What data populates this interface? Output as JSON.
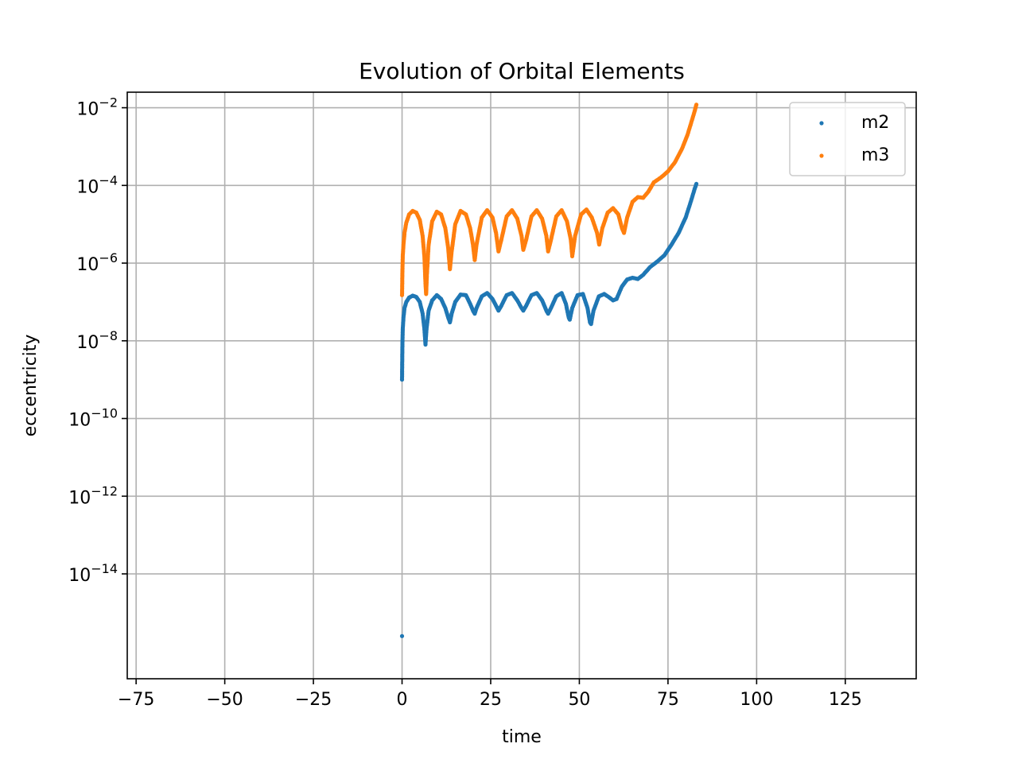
{
  "chart_data": {
    "type": "scatter",
    "title": "Evolution of Orbital Elements",
    "xlabel": "time",
    "ylabel": "eccentricity",
    "xlim": [
      -77.5,
      145
    ],
    "ylim_log10": [
      -16.7,
      -1.6
    ],
    "yscale": "log",
    "grid": true,
    "legend_position": "top-right",
    "x_ticks": [
      -75,
      -50,
      -25,
      0,
      25,
      50,
      75,
      100,
      125
    ],
    "x_tick_labels": [
      "−75",
      "−50",
      "−25",
      "0",
      "25",
      "50",
      "75",
      "100",
      "125"
    ],
    "y_ticks": [
      {
        "exp": -2,
        "base": "10",
        "sup": "−2"
      },
      {
        "exp": -4,
        "base": "10",
        "sup": "−4"
      },
      {
        "exp": -6,
        "base": "10",
        "sup": "−6"
      },
      {
        "exp": -8,
        "base": "10",
        "sup": "−8"
      },
      {
        "exp": -10,
        "base": "10",
        "sup": "−10"
      },
      {
        "exp": -12,
        "base": "10",
        "sup": "−12"
      },
      {
        "exp": -14,
        "base": "10",
        "sup": "−14"
      }
    ],
    "series": [
      {
        "name": "m2",
        "color": "#1f77b4",
        "low_outlier": {
          "x": 0.0,
          "y": 2.5e-16
        },
        "curve": [
          [
            0.0,
            1e-09
          ],
          [
            0.05,
            3e-09
          ],
          [
            0.1,
            8e-09
          ],
          [
            0.2,
            2e-08
          ],
          [
            0.4,
            4e-08
          ],
          [
            0.7,
            7e-08
          ],
          [
            1.2,
            1e-07
          ],
          [
            2.0,
            1.3e-07
          ],
          [
            3.0,
            1.45e-07
          ],
          [
            4.0,
            1.35e-07
          ],
          [
            5.0,
            1e-07
          ],
          [
            5.8,
            5e-08
          ],
          [
            6.3,
            2e-08
          ],
          [
            6.6,
            8e-09
          ],
          [
            6.9,
            2e-08
          ],
          [
            7.5,
            6e-08
          ],
          [
            8.5,
            1.1e-07
          ],
          [
            9.8,
            1.5e-07
          ],
          [
            11.0,
            1.2e-07
          ],
          [
            12.2,
            7e-08
          ],
          [
            13.0,
            4e-08
          ],
          [
            13.5,
            3e-08
          ],
          [
            14.0,
            5e-08
          ],
          [
            15.0,
            1e-07
          ],
          [
            16.5,
            1.55e-07
          ],
          [
            18.0,
            1.5e-07
          ],
          [
            19.2,
            9e-08
          ],
          [
            20.0,
            6e-08
          ],
          [
            20.5,
            5e-08
          ],
          [
            21.0,
            7e-08
          ],
          [
            22.5,
            1.4e-07
          ],
          [
            24.0,
            1.7e-07
          ],
          [
            25.5,
            1.2e-07
          ],
          [
            26.5,
            8e-08
          ],
          [
            27.2,
            6e-08
          ],
          [
            28.0,
            8e-08
          ],
          [
            29.5,
            1.5e-07
          ],
          [
            31.0,
            1.7e-07
          ],
          [
            32.5,
            1.1e-07
          ],
          [
            33.7,
            7e-08
          ],
          [
            34.2,
            6e-08
          ],
          [
            35.0,
            8e-08
          ],
          [
            36.5,
            1.5e-07
          ],
          [
            38.0,
            1.7e-07
          ],
          [
            39.5,
            1.1e-07
          ],
          [
            40.7,
            6e-08
          ],
          [
            41.2,
            5e-08
          ],
          [
            42.0,
            7e-08
          ],
          [
            43.5,
            1.4e-07
          ],
          [
            45.0,
            1.7e-07
          ],
          [
            46.2,
            9e-08
          ],
          [
            47.0,
            4e-08
          ],
          [
            47.3,
            3.5e-08
          ],
          [
            48.0,
            7e-08
          ],
          [
            49.5,
            1.5e-07
          ],
          [
            51.0,
            1.6e-07
          ],
          [
            52.3,
            7e-08
          ],
          [
            53.0,
            3e-08
          ],
          [
            53.3,
            2.7e-08
          ],
          [
            54.0,
            6e-08
          ],
          [
            55.5,
            1.4e-07
          ],
          [
            57.0,
            1.6e-07
          ],
          [
            58.5,
            1.3e-07
          ],
          [
            59.5,
            1.1e-07
          ],
          [
            60.5,
            1.2e-07
          ],
          [
            62.0,
            2.5e-07
          ],
          [
            63.5,
            3.8e-07
          ],
          [
            65.0,
            4.2e-07
          ],
          [
            66.5,
            3.9e-07
          ],
          [
            68.0,
            5e-07
          ],
          [
            70.0,
            8e-07
          ],
          [
            72.0,
            1.1e-06
          ],
          [
            74.0,
            1.6e-06
          ],
          [
            76.0,
            3e-06
          ],
          [
            78.0,
            6e-06
          ],
          [
            80.0,
            1.5e-05
          ],
          [
            81.5,
            4e-05
          ],
          [
            82.5,
            8e-05
          ],
          [
            83.0,
            0.00011
          ]
        ]
      },
      {
        "name": "m3",
        "color": "#ff7f0e",
        "curve": [
          [
            0.0,
            1.5e-07
          ],
          [
            0.05,
            3e-07
          ],
          [
            0.1,
            6e-07
          ],
          [
            0.2,
            1.5e-06
          ],
          [
            0.4,
            3e-06
          ],
          [
            0.7,
            6e-06
          ],
          [
            1.2,
            1.1e-05
          ],
          [
            2.0,
            1.8e-05
          ],
          [
            3.0,
            2.2e-05
          ],
          [
            4.0,
            2e-05
          ],
          [
            5.0,
            1.3e-05
          ],
          [
            5.8,
            5e-06
          ],
          [
            6.3,
            1.5e-06
          ],
          [
            6.6,
            3e-07
          ],
          [
            6.8,
            1.6e-07
          ],
          [
            7.0,
            5e-07
          ],
          [
            7.5,
            3e-06
          ],
          [
            8.5,
            1.2e-05
          ],
          [
            9.8,
            2.1e-05
          ],
          [
            11.0,
            1.8e-05
          ],
          [
            12.2,
            8e-06
          ],
          [
            13.0,
            2.5e-06
          ],
          [
            13.5,
            7e-07
          ],
          [
            14.0,
            2e-06
          ],
          [
            15.0,
            1e-05
          ],
          [
            16.5,
            2.2e-05
          ],
          [
            18.0,
            1.8e-05
          ],
          [
            19.2,
            8e-06
          ],
          [
            20.0,
            3e-06
          ],
          [
            20.5,
            1.2e-06
          ],
          [
            21.0,
            3e-06
          ],
          [
            22.5,
            1.5e-05
          ],
          [
            24.0,
            2.3e-05
          ],
          [
            25.5,
            1.5e-05
          ],
          [
            26.5,
            6e-06
          ],
          [
            27.2,
            2e-06
          ],
          [
            28.0,
            4e-06
          ],
          [
            29.5,
            1.6e-05
          ],
          [
            31.0,
            2.3e-05
          ],
          [
            32.5,
            1.4e-05
          ],
          [
            33.7,
            5e-06
          ],
          [
            34.2,
            2.2e-06
          ],
          [
            35.0,
            4e-06
          ],
          [
            36.5,
            1.6e-05
          ],
          [
            38.0,
            2.3e-05
          ],
          [
            39.5,
            1.4e-05
          ],
          [
            40.7,
            5e-06
          ],
          [
            41.2,
            2e-06
          ],
          [
            42.0,
            4e-06
          ],
          [
            43.5,
            1.6e-05
          ],
          [
            45.0,
            2.3e-05
          ],
          [
            46.5,
            1.2e-05
          ],
          [
            47.6,
            4e-06
          ],
          [
            48.0,
            1.5e-06
          ],
          [
            48.8,
            5e-06
          ],
          [
            50.5,
            1.8e-05
          ],
          [
            52.0,
            2.4e-05
          ],
          [
            53.5,
            1.5e-05
          ],
          [
            55.0,
            6e-06
          ],
          [
            55.6,
            3e-06
          ],
          [
            56.5,
            8e-06
          ],
          [
            58.0,
            2e-05
          ],
          [
            59.5,
            2.6e-05
          ],
          [
            61.0,
            1.8e-05
          ],
          [
            62.0,
            8e-06
          ],
          [
            62.6,
            6e-06
          ],
          [
            63.5,
            1.5e-05
          ],
          [
            65.0,
            3.8e-05
          ],
          [
            66.5,
            5e-05
          ],
          [
            68.0,
            4.8e-05
          ],
          [
            69.5,
            7e-05
          ],
          [
            71.0,
            0.00012
          ],
          [
            73.0,
            0.00016
          ],
          [
            75.0,
            0.00023
          ],
          [
            77.0,
            0.0004
          ],
          [
            79.0,
            0.0009
          ],
          [
            80.5,
            0.002
          ],
          [
            81.5,
            0.004
          ],
          [
            82.5,
            0.008
          ],
          [
            83.0,
            0.012
          ]
        ]
      }
    ]
  }
}
